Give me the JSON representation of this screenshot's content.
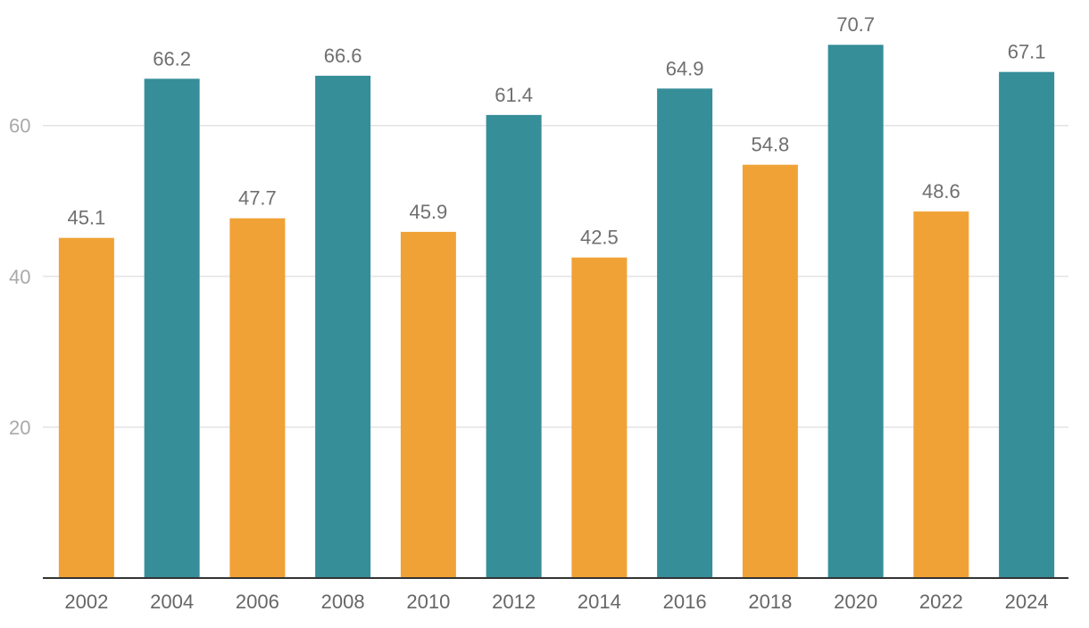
{
  "chart_data": {
    "type": "bar",
    "title": "",
    "xlabel": "",
    "ylabel": "",
    "categories": [
      "2002",
      "2004",
      "2006",
      "2008",
      "2010",
      "2012",
      "2014",
      "2016",
      "2018",
      "2020",
      "2022",
      "2024"
    ],
    "values": [
      45.1,
      66.2,
      47.7,
      66.6,
      45.9,
      61.4,
      42.5,
      64.9,
      54.8,
      70.7,
      48.6,
      67.1
    ],
    "value_labels": [
      "45.1",
      "66.2",
      "47.7",
      "66.6",
      "45.9",
      "61.4",
      "42.5",
      "64.9",
      "54.8",
      "70.7",
      "48.6",
      "67.1"
    ],
    "ylim": [
      0,
      75
    ],
    "yticks": [
      20,
      40,
      60
    ],
    "ytick_labels": [
      "20",
      "40",
      "60"
    ],
    "grid": true,
    "legend": "none",
    "colors": {
      "orange": "#f0a236",
      "teal": "#368e99"
    },
    "bar_colors": [
      "orange",
      "teal",
      "orange",
      "teal",
      "orange",
      "teal",
      "orange",
      "teal",
      "orange",
      "teal",
      "orange",
      "teal"
    ]
  }
}
